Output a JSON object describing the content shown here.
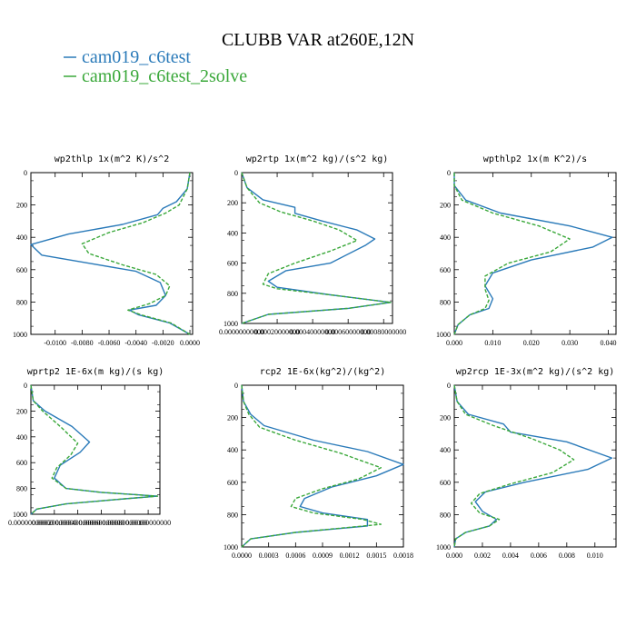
{
  "title": "CLUBB VAR at260E,12N",
  "legend": [
    {
      "label": "cam019_c6test",
      "color": "#2a7ab9"
    },
    {
      "label": "cam019_c6test_2solve",
      "color": "#3aa83a"
    }
  ],
  "chart_data": [
    {
      "type": "line",
      "title": "wp2thlp  1x(m^2 K)/s^2",
      "xlim": [
        -0.0118,
        0.0002
      ],
      "ylim": [
        1000,
        0
      ],
      "xticks": [
        -0.01,
        -0.008,
        -0.006,
        -0.004,
        -0.002,
        0.0
      ],
      "xtick_labels": [
        "-0.0100",
        "-0.0080",
        "-0.0060",
        "-0.0040",
        "-0.0020",
        "0.0000"
      ],
      "yticks": [
        0,
        200,
        400,
        600,
        800,
        1000
      ],
      "ytick_labels": [
        "0",
        "200",
        "400",
        "600",
        "800",
        "1000"
      ],
      "series": [
        {
          "name": "cam019_c6test",
          "color": "#2a7ab9",
          "x": [
            0.0,
            -0.0002,
            -0.001,
            -0.002,
            -0.0024,
            -0.005,
            -0.009,
            -0.0118,
            -0.011,
            -0.0075,
            -0.004,
            -0.0022,
            -0.0018,
            -0.0025,
            -0.0045,
            -0.0038,
            -0.0015,
            0.0
          ],
          "y": [
            0,
            100,
            180,
            220,
            260,
            320,
            380,
            445,
            510,
            560,
            610,
            680,
            760,
            820,
            850,
            880,
            930,
            1000
          ]
        },
        {
          "name": "cam019_c6test_2solve",
          "color": "#3aa83a",
          "x": [
            0.0,
            -0.0002,
            -0.0008,
            -0.0018,
            -0.0035,
            -0.006,
            -0.008,
            -0.0075,
            -0.005,
            -0.0025,
            -0.0015,
            -0.0018,
            -0.003,
            -0.0046,
            -0.0036,
            -0.0014,
            0.0
          ],
          "y": [
            0,
            100,
            200,
            250,
            310,
            370,
            440,
            500,
            570,
            630,
            700,
            760,
            810,
            850,
            880,
            930,
            1000
          ]
        }
      ]
    },
    {
      "type": "line",
      "title": "wp2rtp  1x(m^2 kg)/(s^2 kg)",
      "xlim": [
        0.0,
        0.00085
      ],
      "ylim": [
        1000,
        0
      ],
      "xticks": [
        0.0,
        0.0002,
        0.0004,
        0.0006,
        0.0008
      ],
      "xtick_labels": [
        "0.00000000000",
        "0.00020000000",
        "0.00040000000",
        "0.00060000000",
        "0.00080000000"
      ],
      "yticks": [
        0,
        200,
        400,
        600,
        800,
        1000
      ],
      "ytick_labels": [
        "0",
        "200",
        "400",
        "600",
        "800",
        "1000"
      ],
      "series": [
        {
          "name": "cam019_c6test",
          "color": "#2a7ab9",
          "x": [
            0.0,
            3e-05,
            0.00012,
            0.0003,
            0.0003,
            0.00045,
            0.00065,
            0.00075,
            0.0007,
            0.0005,
            0.00025,
            0.00015,
            0.0002,
            0.0005,
            0.00084,
            0.0006,
            0.00015,
            0.0
          ],
          "y": [
            0,
            100,
            180,
            230,
            270,
            320,
            380,
            440,
            480,
            600,
            650,
            720,
            760,
            810,
            860,
            900,
            940,
            1000
          ]
        },
        {
          "name": "cam019_c6test_2solve",
          "color": "#3aa83a",
          "x": [
            0.0,
            3e-05,
            0.0001,
            0.00022,
            0.0004,
            0.00055,
            0.00065,
            0.0005,
            0.0003,
            0.00015,
            0.00012,
            0.0002,
            0.0005,
            0.00084,
            0.0006,
            0.00015,
            0.0
          ],
          "y": [
            0,
            100,
            200,
            260,
            320,
            380,
            450,
            520,
            600,
            670,
            740,
            770,
            810,
            860,
            900,
            940,
            1000
          ]
        }
      ]
    },
    {
      "type": "line",
      "title": "wpthlp2  1x(m K^2)/s",
      "xlim": [
        0.0,
        0.042
      ],
      "ylim": [
        1000,
        0
      ],
      "xticks": [
        0.0,
        0.01,
        0.02,
        0.03,
        0.04
      ],
      "xtick_labels": [
        "0.000",
        "0.010",
        "0.020",
        "0.030",
        "0.040"
      ],
      "yticks": [
        0,
        200,
        400,
        600,
        800,
        1000
      ],
      "ytick_labels": [
        "0",
        "200",
        "400",
        "600",
        "800",
        "1000"
      ],
      "series": [
        {
          "name": "cam019_c6test",
          "color": "#2a7ab9",
          "x": [
            0.0,
            0.0,
            0.003,
            0.012,
            0.03,
            0.041,
            0.036,
            0.02,
            0.01,
            0.008,
            0.01,
            0.009,
            0.004,
            0.001,
            0.0
          ],
          "y": [
            0,
            80,
            170,
            250,
            330,
            400,
            460,
            540,
            620,
            700,
            780,
            840,
            880,
            940,
            1000
          ]
        },
        {
          "name": "cam019_c6test_2solve",
          "color": "#3aa83a",
          "x": [
            0.0,
            0.0,
            0.002,
            0.01,
            0.022,
            0.03,
            0.025,
            0.014,
            0.008,
            0.008,
            0.009,
            0.008,
            0.004,
            0.001,
            0.0
          ],
          "y": [
            0,
            80,
            170,
            250,
            330,
            410,
            490,
            560,
            640,
            720,
            790,
            840,
            880,
            940,
            1000
          ]
        }
      ]
    },
    {
      "type": "line",
      "title": "wprtp2  1E-6x(m kg)/(s kg)",
      "xlim": [
        0.0,
        0.0011
      ],
      "ylim": [
        1000,
        0
      ],
      "xticks": [
        0.0,
        0.0002,
        0.0004,
        0.0006,
        0.0008,
        0.001
      ],
      "xtick_labels": [
        "0.00000000000",
        "0.00020000000",
        "0.00040000000",
        "0.00060000000",
        "0.00080000000",
        "0.00100000000"
      ],
      "yticks": [
        0,
        200,
        400,
        600,
        800,
        1000
      ],
      "ytick_labels": [
        "0",
        "200",
        "400",
        "600",
        "800",
        "1000"
      ],
      "series": [
        {
          "name": "cam019_c6test",
          "color": "#2a7ab9",
          "x": [
            0.0,
            2e-05,
            0.00012,
            0.00035,
            0.0005,
            0.00042,
            0.00025,
            0.0002,
            0.0003,
            0.0006,
            0.00108,
            0.0008,
            0.0003,
            5e-05,
            0.0
          ],
          "y": [
            0,
            120,
            200,
            320,
            440,
            520,
            620,
            720,
            800,
            830,
            860,
            880,
            920,
            960,
            1000
          ]
        },
        {
          "name": "cam019_c6test_2solve",
          "color": "#3aa83a",
          "x": [
            0.0,
            2e-05,
            0.0001,
            0.00025,
            0.0004,
            0.00034,
            0.00022,
            0.00018,
            0.0003,
            0.0006,
            0.00108,
            0.0008,
            0.0003,
            5e-05,
            0.0
          ],
          "y": [
            0,
            120,
            200,
            320,
            450,
            540,
            640,
            720,
            800,
            830,
            860,
            880,
            920,
            960,
            1000
          ]
        }
      ]
    },
    {
      "type": "line",
      "title": "rcp2  1E-6x(kg^2)/(kg^2)",
      "xlim": [
        0.0,
        0.0018
      ],
      "ylim": [
        1000,
        0
      ],
      "xticks": [
        0.0,
        0.0003,
        0.0006,
        0.0009,
        0.0012,
        0.0015,
        0.0018
      ],
      "xtick_labels": [
        "0.0000",
        "0.0003",
        "0.0006",
        "0.0009",
        "0.0012",
        "0.0015",
        "0.0018"
      ],
      "yticks": [
        0,
        200,
        400,
        600,
        800,
        1000
      ],
      "ytick_labels": [
        "0",
        "200",
        "400",
        "600",
        "800",
        "1000"
      ],
      "series": [
        {
          "name": "cam019_c6test",
          "color": "#2a7ab9",
          "x": [
            0.0,
            2e-05,
            0.0001,
            0.00025,
            0.0008,
            0.0014,
            0.0018,
            0.0015,
            0.001,
            0.0007,
            0.00065,
            0.0009,
            0.0014,
            0.0014,
            0.0006,
            0.0001,
            0.0
          ],
          "y": [
            0,
            100,
            180,
            250,
            340,
            410,
            490,
            560,
            630,
            700,
            750,
            790,
            830,
            870,
            910,
            950,
            1000
          ]
        },
        {
          "name": "cam019_c6test_2solve",
          "color": "#3aa83a",
          "x": [
            0.0,
            2e-05,
            8e-05,
            0.0002,
            0.0006,
            0.0011,
            0.00155,
            0.0013,
            0.0009,
            0.0006,
            0.00055,
            0.0008,
            0.00135,
            0.00155,
            0.0006,
            0.0001,
            0.0
          ],
          "y": [
            0,
            100,
            180,
            260,
            340,
            420,
            510,
            580,
            640,
            700,
            750,
            790,
            830,
            860,
            910,
            950,
            1000
          ]
        }
      ]
    },
    {
      "type": "line",
      "title": "wp2rcp  1E-3x(m^2 kg)/(s^2 kg)",
      "xlim": [
        0.0,
        0.0115
      ],
      "ylim": [
        1000,
        0
      ],
      "xticks": [
        0.0,
        0.002,
        0.004,
        0.006,
        0.008,
        0.01
      ],
      "xtick_labels": [
        "0.000",
        "0.002",
        "0.004",
        "0.006",
        "0.008",
        "0.010"
      ],
      "yticks": [
        0,
        200,
        400,
        600,
        800,
        1000
      ],
      "ytick_labels": [
        "0",
        "200",
        "400",
        "600",
        "800",
        "1000"
      ],
      "series": [
        {
          "name": "cam019_c6test",
          "color": "#2a7ab9",
          "x": [
            0.0,
            0.0002,
            0.001,
            0.0035,
            0.004,
            0.008,
            0.0112,
            0.0095,
            0.005,
            0.0022,
            0.0015,
            0.002,
            0.003,
            0.0025,
            0.0008,
            0.0001,
            0.0
          ],
          "y": [
            0,
            100,
            180,
            240,
            290,
            350,
            450,
            520,
            600,
            660,
            720,
            780,
            830,
            870,
            910,
            950,
            1000
          ]
        },
        {
          "name": "cam019_c6test_2solve",
          "color": "#3aa83a",
          "x": [
            0.0,
            0.0002,
            0.0008,
            0.0028,
            0.0055,
            0.0075,
            0.0085,
            0.007,
            0.004,
            0.0018,
            0.0012,
            0.0018,
            0.0032,
            0.0025,
            0.0008,
            0.0001,
            0.0
          ],
          "y": [
            0,
            100,
            180,
            250,
            330,
            400,
            460,
            540,
            610,
            670,
            730,
            790,
            830,
            870,
            910,
            950,
            1000
          ]
        }
      ]
    }
  ]
}
